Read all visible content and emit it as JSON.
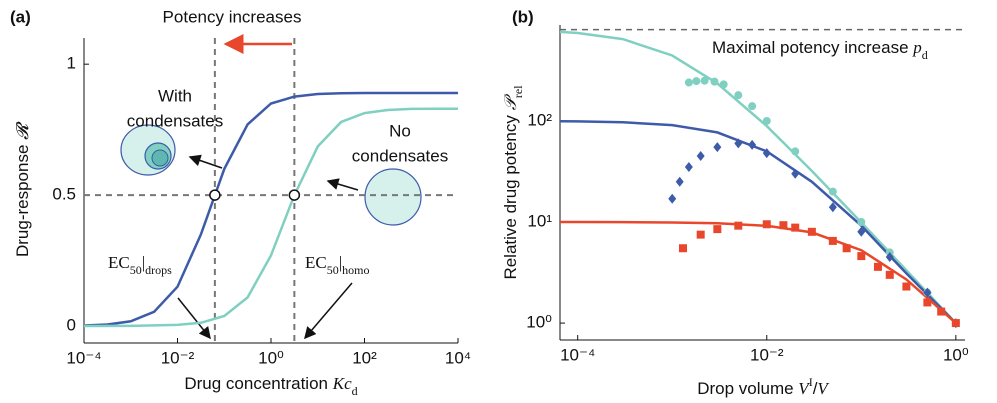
{
  "chart_data": [
    {
      "type": "line",
      "panel": "(a)",
      "xlabel": [
        {
          "text": "Drug concentration "
        },
        {
          "text": "Kc",
          "italic": true
        },
        {
          "text": "d",
          "sub": true
        }
      ],
      "ylabel": [
        {
          "text": "Drug-response "
        },
        {
          "text": "𝓡",
          "italic": true
        }
      ],
      "xscale": "log",
      "xlim": [
        0.0001,
        10000
      ],
      "ylim": [
        -0.065,
        1.1
      ],
      "xticks": [
        {
          "value": 0.0001,
          "label": "10⁻⁴"
        },
        {
          "value": 0.01,
          "label": "10⁻²"
        },
        {
          "value": 1,
          "label": "10⁰"
        },
        {
          "value": 100,
          "label": "10²"
        },
        {
          "value": 10000,
          "label": "10⁴"
        }
      ],
      "yticks": [
        0,
        0.5,
        1
      ],
      "series": [
        {
          "color": "#3d5ba9",
          "x": [
            0.0001,
            0.000316,
            0.001,
            0.00316,
            0.01,
            0.0316,
            0.1,
            0.316,
            1,
            3.16,
            10,
            31.6,
            100,
            1000,
            10000
          ],
          "values": [
            0.0018,
            0.0058,
            0.018,
            0.054,
            0.15,
            0.35,
            0.6,
            0.77,
            0.85,
            0.876,
            0.886,
            0.889,
            0.89,
            0.89,
            0.89
          ]
        },
        {
          "color": "#7fd0c1",
          "x": [
            0.0001,
            0.001,
            0.01,
            0.0316,
            0.1,
            0.316,
            1,
            3.16,
            10,
            31.6,
            100,
            316,
            1000,
            3160,
            10000
          ],
          "values": [
            0.0,
            0.0004,
            0.004,
            0.012,
            0.038,
            0.109,
            0.27,
            0.5,
            0.686,
            0.779,
            0.813,
            0.825,
            0.829,
            0.83,
            0.83
          ]
        }
      ],
      "ec50": [
        {
          "value": 0.063,
          "label": [
            {
              "text": "EC"
            },
            {
              "text": "50",
              "sub": true
            },
            {
              "text": "|"
            },
            {
              "text": "drops",
              "sub": true
            }
          ]
        },
        {
          "value": 3.16,
          "label": [
            {
              "text": "EC"
            },
            {
              "text": "50",
              "sub": true
            },
            {
              "text": "|"
            },
            {
              "text": "homo",
              "sub": true
            }
          ]
        }
      ],
      "threshold": 0.5,
      "annotations": [
        {
          "text": "Potency increases"
        },
        {
          "lines": [
            "With",
            "condensates"
          ]
        },
        {
          "lines": [
            "No",
            "condensates"
          ]
        }
      ]
    },
    {
      "type": "line",
      "panel": "(b)",
      "xlabel": [
        {
          "text": "Drop volume  "
        },
        {
          "text": "V",
          "italic": true
        },
        {
          "text": "I",
          "sup": true
        },
        {
          "text": "/"
        },
        {
          "text": "V",
          "italic": true
        }
      ],
      "ylabel": [
        {
          "text": "Relative drug potency  "
        },
        {
          "text": "𝒫",
          "italic": true
        },
        {
          "text": "rel",
          "sub": true
        }
      ],
      "xscale": "log",
      "yscale": "log",
      "xlim": [
        6.5e-05,
        1.25
      ],
      "ylim": [
        0.68,
        890
      ],
      "xticks": [
        {
          "value": 0.0001,
          "label": "10⁻⁴"
        },
        {
          "value": 0.01,
          "label": "10⁻²"
        },
        {
          "value": 1,
          "label": "10⁰"
        }
      ],
      "yticks": [
        {
          "value": 1,
          "label": "10⁰"
        },
        {
          "value": 10,
          "label": "10¹"
        },
        {
          "value": 100,
          "label": "10²"
        }
      ],
      "max_potency": 800,
      "max_potency_label": [
        {
          "text": "Maximal potency increase  "
        },
        {
          "text": "p",
          "italic": true
        },
        {
          "text": "d",
          "sub": true
        }
      ],
      "series": [
        {
          "color": "#7fd0c1",
          "x": [
            6.5e-05,
            0.0001,
            0.0003,
            0.001,
            0.003,
            0.01,
            0.03,
            0.1,
            0.3,
            1
          ],
          "values": [
            760,
            741,
            646,
            444,
            235,
            89,
            32,
            9.9,
            3.32,
            1
          ]
        },
        {
          "color": "#3d5ba9",
          "x": [
            6.5e-05,
            0.0001,
            0.0003,
            0.001,
            0.003,
            0.01,
            0.03,
            0.1,
            0.3,
            1
          ],
          "values": [
            99.4,
            99,
            97,
            91,
            77,
            50,
            25,
            9.2,
            3.1,
            1
          ]
        },
        {
          "color": "#e9472b",
          "x": [
            6.5e-05,
            0.0001,
            0.0003,
            0.001,
            0.003,
            0.01,
            0.03,
            0.1,
            0.3,
            1
          ],
          "values": [
            10,
            10,
            9.97,
            9.9,
            9.74,
            9.17,
            7.9,
            5.26,
            2.7,
            1
          ]
        },
        {
          "color": "#7fd0c1",
          "marker": "circle",
          "x": [
            0.0015,
            0.0018,
            0.0022,
            0.0028,
            0.0035,
            0.005,
            0.007,
            0.01,
            0.02,
            0.05,
            0.1,
            0.2,
            0.5,
            1
          ],
          "values": [
            240,
            248,
            250,
            245,
            230,
            180,
            140,
            100,
            50,
            20,
            10,
            5,
            2,
            1
          ]
        },
        {
          "color": "#3d5ba9",
          "marker": "diamond",
          "x": [
            0.001,
            0.0012,
            0.0015,
            0.002,
            0.003,
            0.005,
            0.007,
            0.01,
            0.02,
            0.05,
            0.1,
            0.2,
            0.5,
            1
          ],
          "values": [
            17,
            25,
            35,
            45,
            55,
            60,
            58,
            48,
            30,
            14,
            8,
            4.5,
            2,
            1
          ]
        },
        {
          "color": "#e9472b",
          "marker": "square",
          "x": [
            0.0013,
            0.002,
            0.003,
            0.005,
            0.01,
            0.015,
            0.02,
            0.03,
            0.05,
            0.07,
            0.1,
            0.15,
            0.2,
            0.3,
            0.5,
            0.7,
            1
          ],
          "values": [
            5.5,
            7.5,
            8.5,
            9.2,
            9.5,
            9.3,
            8.8,
            8,
            6.5,
            5.5,
            4.6,
            3.6,
            3,
            2.3,
            1.6,
            1.3,
            1
          ]
        }
      ]
    }
  ]
}
